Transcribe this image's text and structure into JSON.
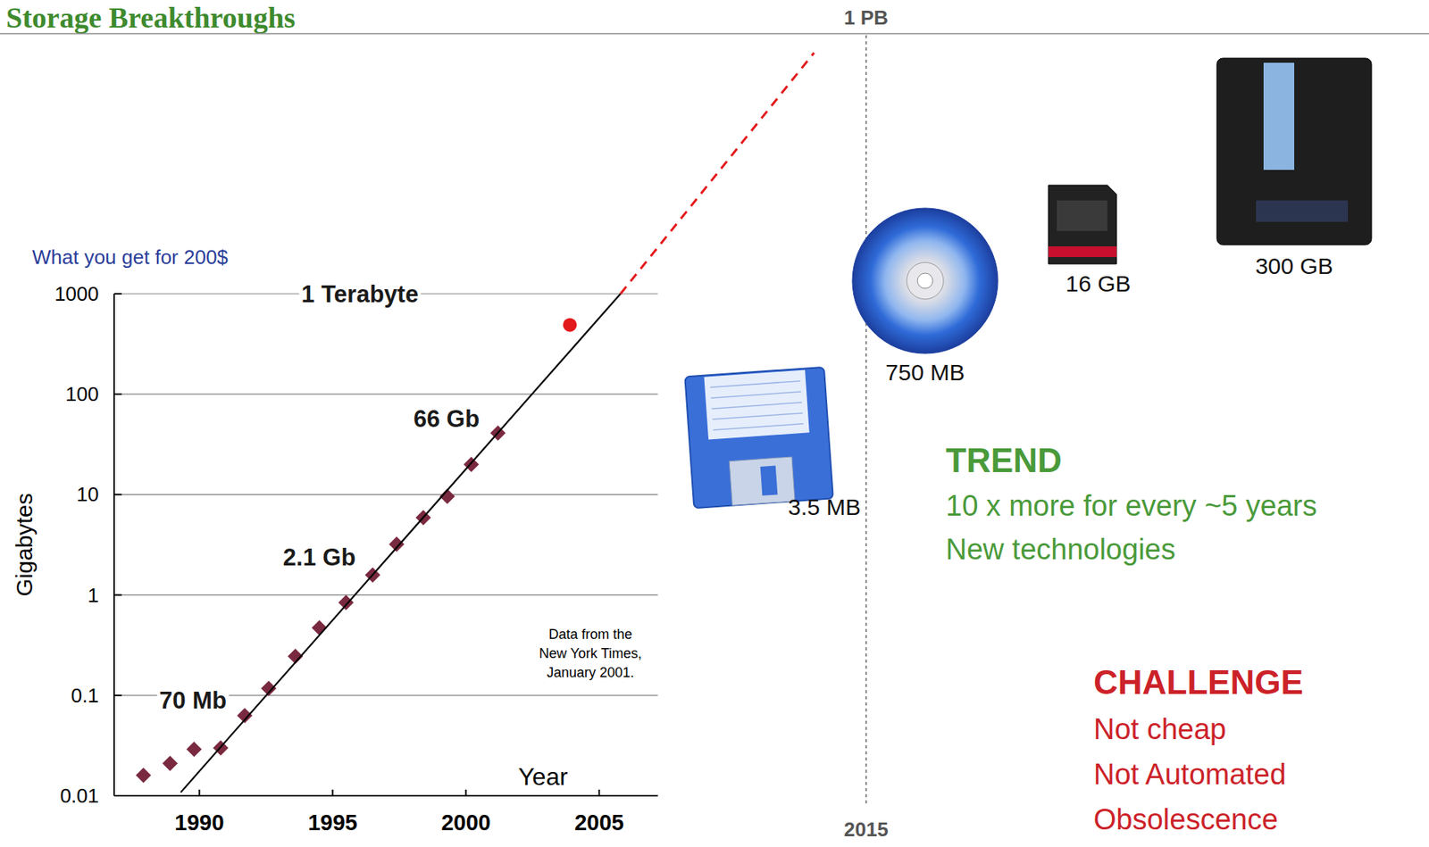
{
  "header": {
    "title": "Storage Breakthroughs"
  },
  "chart_data": {
    "type": "scatter",
    "title": "What you get for 200$",
    "x_label": "Year",
    "y_label": "Gigabytes",
    "log": "y",
    "grid": true,
    "xlim": [
      1986.8,
      2007.2
    ],
    "ylim": [
      0.01,
      1000
    ],
    "xticks": [
      1990,
      1995,
      2000,
      2005
    ],
    "yticks": [
      0.01,
      0.1,
      1,
      10,
      100,
      1000
    ],
    "series": [
      {
        "type": "scatter",
        "marker": "diamond",
        "color": "#7a2a40",
        "x": [
          1987.9,
          1988.9,
          1989.8,
          1990.8,
          1991.7,
          1992.6,
          1993.6,
          1994.5,
          1995.5,
          1996.5,
          1997.4,
          1998.4,
          1999.3,
          2000.2,
          2001.2
        ],
        "values": [
          0.016,
          0.021,
          0.029,
          0.03,
          0.063,
          0.117,
          0.245,
          0.47,
          0.84,
          1.58,
          3.2,
          5.9,
          9.6,
          20,
          41
        ]
      },
      {
        "type": "scatter",
        "marker": "circle",
        "color": "#e31a1c",
        "x": [
          2003.9
        ],
        "values": [
          490
        ]
      },
      {
        "type": "line",
        "line_style": "solid",
        "color": "#000000",
        "x": [
          1989.3,
          2005.8
        ],
        "values": [
          0.0108,
          1000
        ]
      }
    ],
    "annotations": [
      "1 Terabyte",
      "66 Gb",
      "2.1 Gb",
      "70 Mb"
    ],
    "source_note": [
      "Data from the",
      "New York Times,",
      "January 2001."
    ]
  },
  "projection": {
    "capacity_label": "1 PB",
    "year_label": "2015"
  },
  "media": [
    {
      "label": "3.5 MB"
    },
    {
      "label": "750 MB"
    },
    {
      "label": "16 GB"
    },
    {
      "label": "300 GB"
    }
  ],
  "trend": {
    "heading": "TREND",
    "lines": [
      "10 x more for every ~5 years",
      "New technologies"
    ]
  },
  "challenge": {
    "heading": "CHALLENGE",
    "lines": [
      "Not cheap",
      "Not Automated",
      "Obsolescence"
    ]
  }
}
